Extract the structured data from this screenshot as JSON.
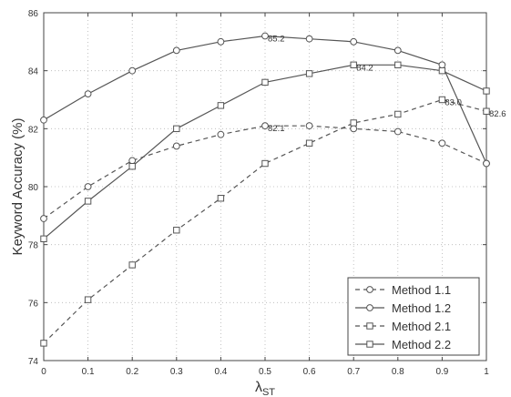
{
  "chart_data": {
    "type": "line",
    "xlabel": "λ",
    "xlabel_sub": "ST",
    "ylabel": "Keyword Accuracy (%)",
    "x": [
      0,
      0.1,
      0.2,
      0.3,
      0.4,
      0.5,
      0.6,
      0.7,
      0.8,
      0.9,
      1
    ],
    "xtick_labels": [
      "0",
      "0.1",
      "0.2",
      "0.3",
      "0.4",
      "0.5",
      "0.6",
      "0.7",
      "0.8",
      "0.9",
      "1"
    ],
    "yticks": [
      74,
      76,
      78,
      80,
      82,
      84,
      86
    ],
    "xlim": [
      0,
      1
    ],
    "ylim": [
      74,
      86
    ],
    "grid": true,
    "legend_position": "bottom-right",
    "series": [
      {
        "name": "Method 1.1",
        "line": "dashed",
        "marker": "circle",
        "values": [
          78.9,
          80.0,
          80.9,
          81.4,
          81.8,
          82.1,
          82.1,
          82.0,
          81.9,
          81.5,
          80.8
        ]
      },
      {
        "name": "Method 1.2",
        "line": "solid",
        "marker": "circle",
        "values": [
          82.3,
          83.2,
          84.0,
          84.7,
          85.0,
          85.2,
          85.1,
          85.0,
          84.7,
          84.2,
          80.8
        ]
      },
      {
        "name": "Method 2.1",
        "line": "dashed",
        "marker": "square",
        "values": [
          74.6,
          76.1,
          77.3,
          78.5,
          79.6,
          80.8,
          81.5,
          82.2,
          82.5,
          83.0,
          82.6
        ]
      },
      {
        "name": "Method 2.2",
        "line": "solid",
        "marker": "square",
        "values": [
          78.2,
          79.5,
          80.7,
          82.0,
          82.8,
          83.6,
          83.9,
          84.2,
          84.2,
          84.0,
          83.3
        ]
      }
    ],
    "annotations": [
      {
        "text": "85.2",
        "x": 0.5,
        "y": 85.2
      },
      {
        "text": "84.2",
        "x": 0.7,
        "y": 84.2
      },
      {
        "text": "82.1",
        "x": 0.5,
        "y": 82.1
      },
      {
        "text": "83.0",
        "x": 0.9,
        "y": 83.0
      },
      {
        "text": "82.6",
        "x": 1.0,
        "y": 82.6
      }
    ]
  }
}
